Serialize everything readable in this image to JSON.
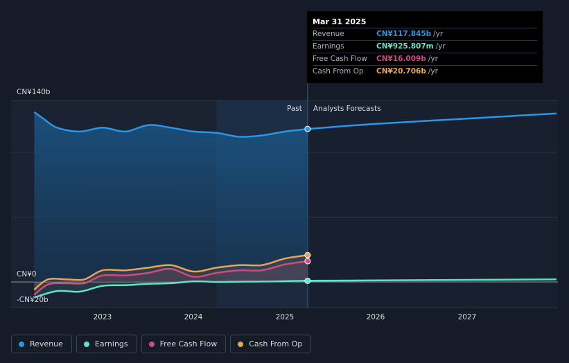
{
  "chart_data": {
    "type": "line",
    "y_axis_labels": {
      "top": "CN¥140b",
      "zero": "CN¥0",
      "bottom": "-CN¥20b"
    },
    "ylim": [
      -20,
      140
    ],
    "x_ticks": [
      "2023",
      "2024",
      "2025",
      "2026",
      "2027"
    ],
    "divider_labels": {
      "past": "Past",
      "forecast": "Analysts Forecasts"
    },
    "series": [
      {
        "name": "Revenue",
        "color": "#2b96e8",
        "points": [
          [
            2022.25,
            131
          ],
          [
            2022.35,
            126
          ],
          [
            2022.5,
            119
          ],
          [
            2022.75,
            116
          ],
          [
            2023.0,
            119
          ],
          [
            2023.25,
            116
          ],
          [
            2023.5,
            121
          ],
          [
            2023.75,
            119
          ],
          [
            2024.0,
            116
          ],
          [
            2024.25,
            115
          ],
          [
            2024.5,
            112
          ],
          [
            2024.75,
            113
          ],
          [
            2025.0,
            116
          ],
          [
            2025.25,
            118
          ]
        ],
        "forecast": [
          [
            2025.25,
            118
          ],
          [
            2026.0,
            122
          ],
          [
            2027.0,
            126
          ],
          [
            2027.98,
            130
          ]
        ]
      },
      {
        "name": "Earnings",
        "color": "#5ee5c6",
        "points": [
          [
            2022.25,
            -12
          ],
          [
            2022.5,
            -7
          ],
          [
            2022.75,
            -7.5
          ],
          [
            2023.0,
            -3
          ],
          [
            2023.25,
            -2.5
          ],
          [
            2023.5,
            -1.5
          ],
          [
            2023.75,
            -1
          ],
          [
            2024.0,
            0.5
          ],
          [
            2024.25,
            0
          ],
          [
            2024.5,
            0.2
          ],
          [
            2024.75,
            0.3
          ],
          [
            2025.0,
            0.6
          ],
          [
            2025.25,
            0.9
          ]
        ],
        "forecast": [
          [
            2025.25,
            0.9
          ],
          [
            2026.0,
            1.2
          ],
          [
            2027.0,
            1.6
          ],
          [
            2027.98,
            2.0
          ]
        ]
      },
      {
        "name": "Free Cash Flow",
        "color": "#d04a85",
        "points": [
          [
            2022.25,
            -10
          ],
          [
            2022.4,
            -2
          ],
          [
            2022.6,
            -1
          ],
          [
            2022.8,
            -1
          ],
          [
            2023.0,
            5
          ],
          [
            2023.25,
            5
          ],
          [
            2023.5,
            7
          ],
          [
            2023.75,
            10
          ],
          [
            2024.0,
            4
          ],
          [
            2024.25,
            7
          ],
          [
            2024.5,
            9
          ],
          [
            2024.75,
            9
          ],
          [
            2025.0,
            13.5
          ],
          [
            2025.25,
            16
          ]
        ],
        "forecast": []
      },
      {
        "name": "Cash From Op",
        "color": "#e9a455",
        "points": [
          [
            2022.25,
            -6
          ],
          [
            2022.4,
            2
          ],
          [
            2022.6,
            2
          ],
          [
            2022.8,
            2
          ],
          [
            2023.0,
            9
          ],
          [
            2023.25,
            9
          ],
          [
            2023.5,
            11
          ],
          [
            2023.75,
            13
          ],
          [
            2024.0,
            8
          ],
          [
            2024.25,
            11
          ],
          [
            2024.5,
            13
          ],
          [
            2024.75,
            13
          ],
          [
            2025.0,
            18
          ],
          [
            2025.25,
            20.7
          ]
        ],
        "forecast": []
      }
    ],
    "xlim": [
      2022.25,
      2027.98
    ],
    "grid": true,
    "legend": "bottom-left"
  },
  "tooltip": {
    "date": "Mar 31 2025",
    "rows": [
      {
        "label": "Revenue",
        "value": "CN¥117.845b",
        "unit": "/yr",
        "color": "#2b96e8"
      },
      {
        "label": "Earnings",
        "value": "CN¥925.807m",
        "unit": "/yr",
        "color": "#5ee5c6"
      },
      {
        "label": "Free Cash Flow",
        "value": "CN¥16.009b",
        "unit": "/yr",
        "color": "#d04a85"
      },
      {
        "label": "Cash From Op",
        "value": "CN¥20.706b",
        "unit": "/yr",
        "color": "#e9a455"
      }
    ]
  },
  "legend": [
    {
      "label": "Revenue",
      "color": "#2b96e8"
    },
    {
      "label": "Earnings",
      "color": "#5ee5c6"
    },
    {
      "label": "Free Cash Flow",
      "color": "#d04a85"
    },
    {
      "label": "Cash From Op",
      "color": "#e9a455"
    }
  ]
}
